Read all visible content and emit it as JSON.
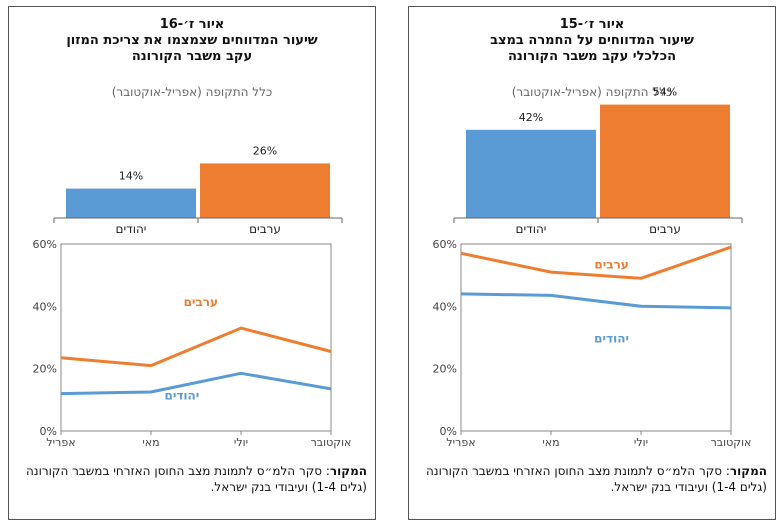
{
  "chart_data": [
    {
      "panel": "right",
      "type": "bar",
      "title_line1": "איור ז׳-15",
      "title_line2": "שיעור המדווחים על החמרה במצב",
      "title_line3": "הכלכלי עקב משבר הקורונה",
      "subtitle": "כלל התקופה (אפריל-אוקטובר)",
      "categories": [
        "יהודים",
        "ערבים"
      ],
      "values": [
        42,
        54
      ],
      "value_labels": [
        "42%",
        "54%"
      ],
      "colors": [
        "#5b9bd5",
        "#ed7d31"
      ],
      "line_chart": {
        "type": "line",
        "x": [
          "אפריל",
          "מאי",
          "יולי",
          "אוקטובר"
        ],
        "ylim": [
          0,
          60
        ],
        "yticks": [
          "0%",
          "20%",
          "40%",
          "60%"
        ],
        "series": [
          {
            "name": "ערבים",
            "values": [
              57,
              51,
              49,
              59
            ],
            "color": "#ed7d31"
          },
          {
            "name": "יהודים",
            "values": [
              44,
              43.5,
              40,
              39.5
            ],
            "color": "#5b9bd5"
          }
        ]
      },
      "source_bold": "המקור",
      "source_text": ": סקר הלמ״ס לתמונת מצב החוסן האזרחי במשבר הקורונה (גלים 1-4) ועיבודי בנק ישראל."
    },
    {
      "panel": "left",
      "type": "bar",
      "title_line1": "איור ז׳-16",
      "title_line2": "שיעור המדווחים שצמצמו את צריכת המזון",
      "title_line3": "עקב משבר הקורונה",
      "subtitle": "כלל התקופה (אפריל-אוקטובר)",
      "categories": [
        "יהודים",
        "ערבים"
      ],
      "values": [
        14,
        26
      ],
      "value_labels": [
        "14%",
        "26%"
      ],
      "colors": [
        "#5b9bd5",
        "#ed7d31"
      ],
      "line_chart": {
        "type": "line",
        "x": [
          "אפריל",
          "מאי",
          "יולי",
          "אוקטובר"
        ],
        "ylim": [
          0,
          60
        ],
        "yticks": [
          "0%",
          "20%",
          "40%",
          "60%"
        ],
        "series": [
          {
            "name": "ערבים",
            "values": [
              23.5,
              21,
              33,
              25.5
            ],
            "color": "#ed7d31"
          },
          {
            "name": "יהודים",
            "values": [
              12,
              12.5,
              18.5,
              13.5
            ],
            "color": "#5b9bd5"
          }
        ]
      },
      "source_bold": "המקור",
      "source_text": ": סקר הלמ״ס לתמונת מצב החוסן האזרחי במשבר הקורונה (גלים 1-4) ועיבודי בנק ישראל."
    }
  ]
}
